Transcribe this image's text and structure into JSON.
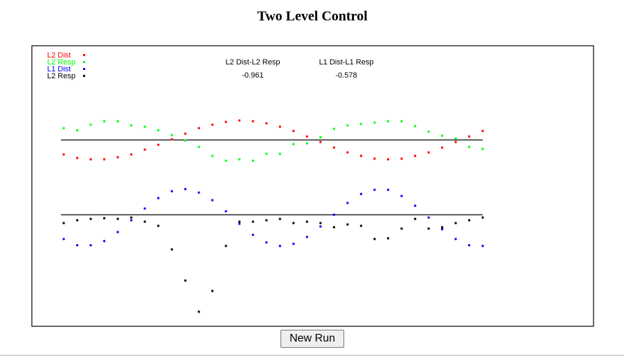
{
  "header": {
    "title": "Two Level Control"
  },
  "correlations": [
    {
      "label": "L2 Dist-L2 Resp",
      "value": "-0.961"
    },
    {
      "label": "L1 Dist-L1 Resp",
      "value": "-0.578"
    }
  ],
  "panels": [
    {
      "series": [
        {
          "name": "L2 Dist",
          "color": "#ff0000",
          "values": [
            -21,
            -26,
            -28,
            -28,
            -25,
            -21,
            -14,
            -7,
            1,
            9,
            17,
            22,
            26,
            28,
            27,
            24,
            19,
            13,
            5,
            -3,
            -11,
            -18,
            -23,
            -27,
            -28,
            -27,
            -23,
            -18,
            -11,
            -3,
            5,
            13
          ]
        },
        {
          "name": "L2 Resp",
          "color": "#00ff00",
          "values": [
            17,
            14,
            22,
            27,
            27,
            21,
            19,
            14,
            7,
            -1,
            -10,
            -23,
            -30,
            -28,
            -30,
            -20,
            -20,
            -6,
            -5,
            4,
            16,
            21,
            23,
            25,
            27,
            27,
            20,
            12,
            6,
            2,
            -10,
            -13
          ]
        }
      ]
    },
    {
      "series": [
        {
          "name": "L1 Dist",
          "color": "#0000ff",
          "values": [
            -35,
            -44,
            -44,
            -38,
            -25,
            -8,
            9,
            24,
            34,
            37,
            32,
            21,
            5,
            -13,
            -29,
            -40,
            -45,
            -42,
            -32,
            -17,
            0,
            17,
            30,
            36,
            36,
            27,
            13,
            -4,
            -21,
            -35,
            -44,
            -45
          ]
        },
        {
          "name": "L2 Resp",
          "color": "#000000",
          "values": [
            -12,
            -8,
            -6,
            -5,
            -6,
            -4,
            -10,
            -16,
            -50,
            -95,
            -140,
            -110,
            -45,
            -10,
            -10,
            -8,
            -6,
            -12,
            -10,
            -12,
            -18,
            -14,
            -16,
            -35,
            -34,
            -20,
            -6,
            -20,
            -18,
            -12,
            -8,
            -4
          ]
        }
      ]
    }
  ],
  "button": {
    "label": "New Run"
  }
}
